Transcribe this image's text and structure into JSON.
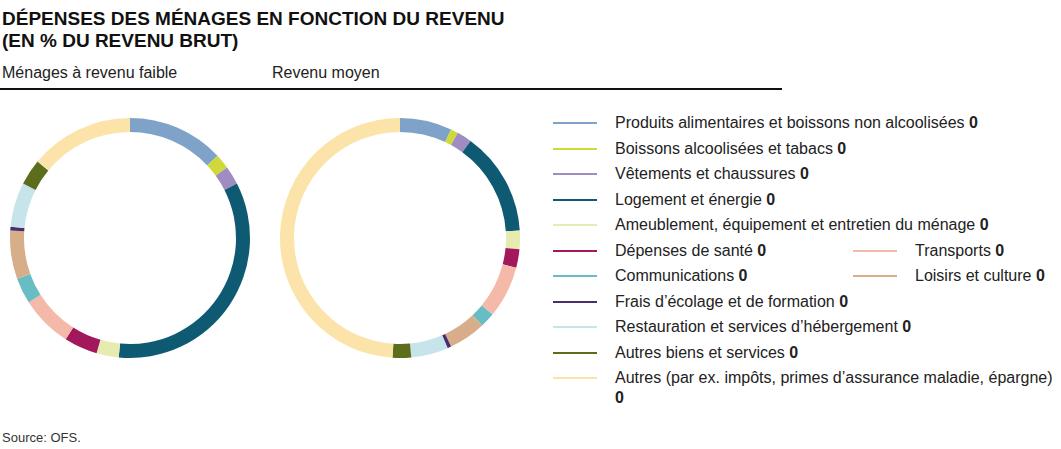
{
  "chart_data": {
    "type": "donut",
    "title": "DÉPENSES DES MÉNAGES EN FONCTION DU REVENU",
    "subtitle": "(EN % DU REVENU BRUT)",
    "categories": [
      "Produits alimentaires et boissons non alcoolisées",
      "Boissons alcoolisées et tabacs",
      "Vêtements et chaussures",
      "Logement et énergie",
      "Ameublement, équipement et entretien du ménage",
      "Dépenses de santé",
      "Transports",
      "Communications",
      "Loisirs et culture",
      "Frais d’écolage et de formation",
      "Restauration et services d’hébergement",
      "Autres biens et services",
      "Autres (par ex. impôts, primes d’assurance maladie, épargne)"
    ],
    "colors": [
      "#7fa3c8",
      "#cfd93a",
      "#a08cc0",
      "#0e5a73",
      "#e6ecb0",
      "#a3185d",
      "#f4b9a8",
      "#68bcc4",
      "#d7ad8a",
      "#4a2d6e",
      "#c7e4ea",
      "#5c6e1c",
      "#fce3a9"
    ],
    "series": [
      {
        "name": "Ménages à revenu faible",
        "values": [
          13,
          2,
          2.5,
          34,
          3,
          4.5,
          7,
          3.5,
          6.5,
          0.5,
          6,
          3.5,
          14
        ]
      },
      {
        "name": "Revenu moyen",
        "values": [
          7,
          1,
          2,
          14,
          2.5,
          2.5,
          7,
          2,
          5,
          0.5,
          5,
          2.5,
          49
        ]
      }
    ],
    "legend_values": [
      0,
      0,
      0,
      0,
      0,
      0,
      0,
      0,
      0,
      0,
      0,
      0,
      0
    ],
    "source": "Source: OFS."
  }
}
